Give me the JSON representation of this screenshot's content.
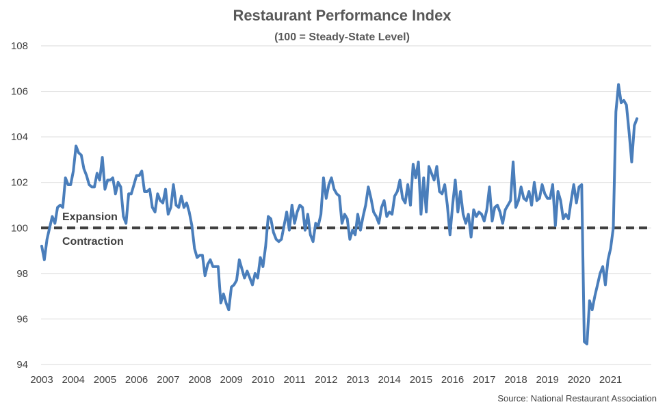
{
  "chart_data": {
    "type": "line",
    "title": "Restaurant Performance Index",
    "subtitle": "(100 = Steady-State Level)",
    "xlabel": "",
    "ylabel": "",
    "ylim": [
      94,
      108
    ],
    "y_ticks": [
      "94",
      "96",
      "98",
      "100",
      "102",
      "104",
      "106",
      "108"
    ],
    "x_ticks": [
      "2003",
      "2004",
      "2005",
      "2006",
      "2007",
      "2008",
      "2009",
      "2010",
      "2011",
      "2012",
      "2013",
      "2014",
      "2015",
      "2016",
      "2017",
      "2018",
      "2019",
      "2020",
      "2021"
    ],
    "grid": "horizontal",
    "reference_line": {
      "value": 100,
      "style": "dashed",
      "color": "#404040"
    },
    "annotations": {
      "above": "Expansion",
      "below": "Contraction"
    },
    "source": "Source: National Restaurant Association",
    "colors": {
      "series": "#4a7ebb",
      "reference": "#404040",
      "grid": "#d9d9d9"
    },
    "series": [
      {
        "x": [
          "2003-01",
          "2003-02",
          "2003-03",
          "2003-04",
          "2003-05",
          "2003-06",
          "2003-07",
          "2003-08",
          "2003-09",
          "2003-10",
          "2003-11",
          "2003-12",
          "2004-01",
          "2004-02",
          "2004-03",
          "2004-04",
          "2004-05",
          "2004-06",
          "2004-07",
          "2004-08",
          "2004-09",
          "2004-10",
          "2004-11",
          "2004-12",
          "2005-01",
          "2005-02",
          "2005-03",
          "2005-04",
          "2005-05",
          "2005-06",
          "2005-07",
          "2005-08",
          "2005-09",
          "2005-10",
          "2005-11",
          "2005-12",
          "2006-01",
          "2006-02",
          "2006-03",
          "2006-04",
          "2006-05",
          "2006-06",
          "2006-07",
          "2006-08",
          "2006-09",
          "2006-10",
          "2006-11",
          "2006-12",
          "2007-01",
          "2007-02",
          "2007-03",
          "2007-04",
          "2007-05",
          "2007-06",
          "2007-07",
          "2007-08",
          "2007-09",
          "2007-10",
          "2007-11",
          "2007-12",
          "2008-01",
          "2008-02",
          "2008-03",
          "2008-04",
          "2008-05",
          "2008-06",
          "2008-07",
          "2008-08",
          "2008-09",
          "2008-10",
          "2008-11",
          "2008-12",
          "2009-01",
          "2009-02",
          "2009-03",
          "2009-04",
          "2009-05",
          "2009-06",
          "2009-07",
          "2009-08",
          "2009-09",
          "2009-10",
          "2009-11",
          "2009-12",
          "2010-01",
          "2010-02",
          "2010-03",
          "2010-04",
          "2010-05",
          "2010-06",
          "2010-07",
          "2010-08",
          "2010-09",
          "2010-10",
          "2010-11",
          "2010-12",
          "2011-01",
          "2011-02",
          "2011-03",
          "2011-04",
          "2011-05",
          "2011-06",
          "2011-07",
          "2011-08",
          "2011-09",
          "2011-10",
          "2011-11",
          "2011-12",
          "2012-01",
          "2012-02",
          "2012-03",
          "2012-04",
          "2012-05",
          "2012-06",
          "2012-07",
          "2012-08",
          "2012-09",
          "2012-10",
          "2012-11",
          "2012-12",
          "2013-01",
          "2013-02",
          "2013-03",
          "2013-04",
          "2013-05",
          "2013-06",
          "2013-07",
          "2013-08",
          "2013-09",
          "2013-10",
          "2013-11",
          "2013-12",
          "2014-01",
          "2014-02",
          "2014-03",
          "2014-04",
          "2014-05",
          "2014-06",
          "2014-07",
          "2014-08",
          "2014-09",
          "2014-10",
          "2014-11",
          "2014-12",
          "2015-01",
          "2015-02",
          "2015-03",
          "2015-04",
          "2015-05",
          "2015-06",
          "2015-07",
          "2015-08",
          "2015-09",
          "2015-10",
          "2015-11",
          "2015-12",
          "2016-01",
          "2016-02",
          "2016-03",
          "2016-04",
          "2016-05",
          "2016-06",
          "2016-07",
          "2016-08",
          "2016-09",
          "2016-10",
          "2016-11",
          "2016-12",
          "2017-01",
          "2017-02",
          "2017-03",
          "2017-04",
          "2017-05",
          "2017-06",
          "2017-07",
          "2017-08",
          "2017-09",
          "2017-10",
          "2017-11",
          "2017-12",
          "2018-01",
          "2018-02",
          "2018-03",
          "2018-04",
          "2018-05",
          "2018-06",
          "2018-07",
          "2018-08",
          "2018-09",
          "2018-10",
          "2018-11",
          "2018-12",
          "2019-01",
          "2019-02",
          "2019-03",
          "2019-04",
          "2019-05",
          "2019-06",
          "2019-07",
          "2019-08",
          "2019-09",
          "2019-10",
          "2019-11",
          "2019-12",
          "2020-01",
          "2020-02",
          "2020-03",
          "2020-04",
          "2020-05",
          "2020-06",
          "2020-07",
          "2020-08",
          "2020-09",
          "2020-10",
          "2020-11",
          "2020-12",
          "2021-01",
          "2021-02",
          "2021-03",
          "2021-04",
          "2021-05",
          "2021-06",
          "2021-07",
          "2021-08",
          "2021-09",
          "2021-10",
          "2021-11"
        ],
        "values": [
          99.2,
          98.6,
          99.5,
          100.0,
          100.5,
          100.2,
          100.9,
          101.0,
          100.9,
          102.2,
          101.9,
          101.9,
          102.5,
          103.6,
          103.3,
          103.2,
          102.6,
          102.3,
          101.9,
          101.8,
          101.8,
          102.4,
          102.1,
          103.1,
          101.7,
          102.1,
          102.1,
          102.2,
          101.5,
          102.0,
          101.8,
          100.5,
          100.2,
          101.5,
          101.5,
          101.9,
          102.3,
          102.3,
          102.5,
          101.6,
          101.6,
          101.7,
          100.9,
          100.7,
          101.5,
          101.2,
          101.1,
          101.7,
          100.6,
          100.9,
          101.9,
          101.0,
          100.9,
          101.4,
          100.9,
          101.1,
          100.7,
          100.1,
          99.1,
          98.7,
          98.8,
          98.8,
          97.9,
          98.4,
          98.6,
          98.3,
          98.3,
          98.3,
          96.7,
          97.1,
          96.7,
          96.4,
          97.4,
          97.5,
          97.7,
          98.6,
          98.2,
          97.8,
          98.1,
          97.8,
          97.5,
          98.0,
          97.8,
          98.7,
          98.3,
          99.2,
          100.5,
          100.4,
          99.8,
          99.5,
          99.4,
          99.5,
          100.1,
          100.7,
          99.9,
          101.0,
          100.2,
          100.7,
          101.0,
          100.9,
          99.9,
          100.6,
          99.7,
          99.4,
          100.2,
          100.1,
          100.6,
          102.2,
          101.3,
          101.9,
          102.2,
          101.7,
          101.5,
          101.4,
          100.2,
          100.6,
          100.4,
          99.5,
          99.9,
          99.7,
          100.6,
          99.9,
          100.5,
          101.0,
          101.8,
          101.3,
          100.7,
          100.5,
          100.2,
          100.9,
          101.2,
          100.5,
          100.7,
          100.6,
          101.4,
          101.6,
          102.1,
          101.3,
          101.1,
          101.9,
          101.0,
          102.8,
          102.2,
          102.9,
          100.6,
          102.2,
          100.7,
          102.7,
          102.4,
          102.1,
          102.7,
          101.6,
          101.5,
          101.9,
          101.0,
          99.7,
          101.0,
          102.1,
          100.7,
          101.6,
          100.6,
          100.2,
          100.6,
          99.6,
          100.8,
          100.5,
          100.7,
          100.6,
          100.3,
          100.8,
          101.8,
          100.3,
          100.9,
          101.0,
          100.7,
          100.2,
          100.8,
          101.0,
          101.2,
          102.9,
          100.9,
          101.2,
          101.8,
          101.3,
          101.2,
          101.6,
          101.0,
          102.0,
          101.2,
          101.3,
          101.9,
          101.5,
          101.3,
          101.3,
          101.9,
          100.1,
          101.6,
          101.2,
          100.4,
          100.6,
          100.4,
          101.2,
          101.9,
          101.1,
          101.8,
          101.9,
          95.0,
          94.9,
          96.8,
          96.4,
          97.0,
          97.5,
          98.0,
          98.3,
          97.5,
          98.6,
          99.1,
          100.0,
          105.1,
          106.3,
          105.5,
          105.6,
          105.4,
          104.2,
          102.9,
          104.5,
          104.8
        ]
      }
    ]
  }
}
